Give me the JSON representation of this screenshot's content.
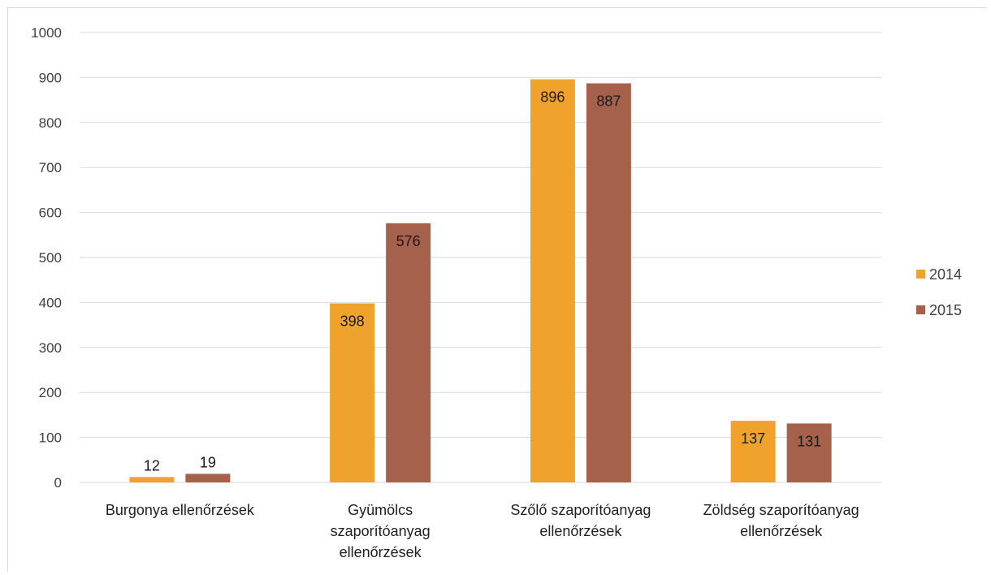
{
  "chart_data": {
    "type": "bar",
    "categories": [
      [
        "Burgonya ellenőrzések"
      ],
      [
        "Gyümölcs",
        "szaporítóanyag",
        "ellenőrzések"
      ],
      [
        "Szőlő szaporítóanyag",
        "ellenőrzések"
      ],
      [
        "Zöldség szaporítóanyag",
        "ellenőrzések"
      ]
    ],
    "series": [
      {
        "name": "2014",
        "values": [
          12,
          398,
          896,
          137
        ],
        "color": "#f0a32c"
      },
      {
        "name": "2015",
        "values": [
          19,
          576,
          887,
          131
        ],
        "color": "#a5614a"
      }
    ],
    "ylim": [
      0,
      1000
    ],
    "yticks": [
      0,
      100,
      200,
      300,
      400,
      500,
      600,
      700,
      800,
      900,
      1000
    ],
    "grid": true,
    "gridline_color": "#d9d9d9",
    "legend_position": "right",
    "data_label_position": "inside-end, above when bar is small"
  }
}
